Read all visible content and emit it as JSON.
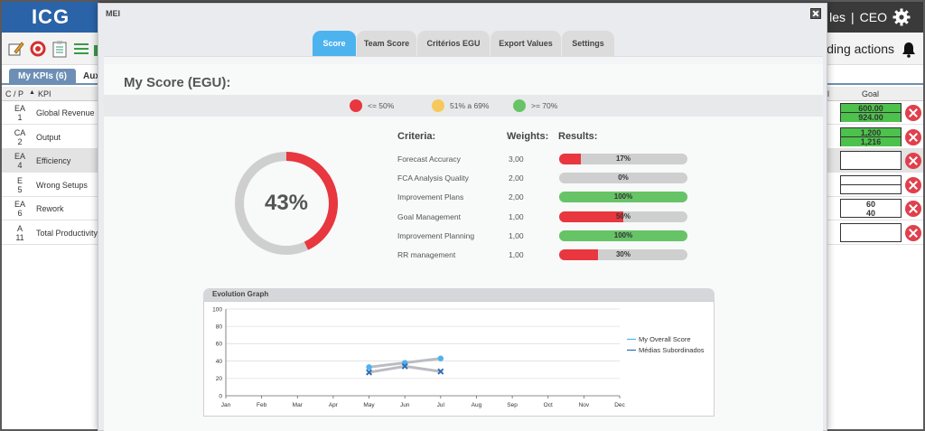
{
  "app": {
    "logo": "ICG",
    "user_partial": "les",
    "separator": "|",
    "role": "CEO",
    "pending_partial": "ending actions",
    "subtabs": {
      "active": "My KPIs (6)",
      "other": "Auxili"
    },
    "grid_headers": {
      "cp": "C / P",
      "kpi": "KPI",
      "goal_partial": "l",
      "goal": "Goal"
    },
    "rows": [
      {
        "cp1": "EA",
        "cp2": "1",
        "kpi": "Global Revenue"
      },
      {
        "cp1": "CA",
        "cp2": "2",
        "kpi": "Output"
      },
      {
        "cp1": "EA",
        "cp2": "4",
        "kpi": "Efficiency"
      },
      {
        "cp1": "E",
        "cp2": "5",
        "kpi": "Wrong Setups"
      },
      {
        "cp1": "EA",
        "cp2": "6",
        "kpi": "Rework"
      },
      {
        "cp1": "A",
        "cp2": "11",
        "kpi": "Total Productivity"
      }
    ],
    "goals": [
      {
        "v1": "600.00",
        "v2": "924.00"
      },
      {
        "v1": "1,200",
        "v2": "1,216"
      },
      {
        "v1": "",
        "v2": ""
      },
      {
        "v1": "",
        "v2": ""
      },
      {
        "v1": "60",
        "v2": "40"
      },
      {
        "v1": "",
        "v2": ""
      }
    ]
  },
  "modal": {
    "title": "MEI",
    "tabs": [
      "Score",
      "Team Score",
      "Critérios EGU",
      "Export Values",
      "Settings"
    ],
    "active_tab": "Score",
    "score_title": "My Score (EGU):",
    "legend": [
      {
        "label": "<= 50%",
        "color": "#e8373f"
      },
      {
        "label": "51% a 69%",
        "color": "#f7c95c"
      },
      {
        "label": ">= 70%",
        "color": "#66c466"
      }
    ],
    "overall_score": {
      "value": 43,
      "label": "43%"
    },
    "criteria_headers": {
      "criteria": "Criteria:",
      "weights": "Weights:",
      "results": "Results:"
    },
    "criteria": [
      {
        "name": "Forecast Accuracy",
        "weight": "3,00",
        "result": 17,
        "label": "17%",
        "color": "#e8373f"
      },
      {
        "name": "FCA Analysis Quality",
        "weight": "2,00",
        "result": 0,
        "label": "0%",
        "color": "#e8373f"
      },
      {
        "name": "Improvement Plans",
        "weight": "2,00",
        "result": 100,
        "label": "100%",
        "color": "#66c466"
      },
      {
        "name": "Goal Management",
        "weight": "1,00",
        "result": 50,
        "label": "50%",
        "color": "#e8373f"
      },
      {
        "name": "Improvement Planning",
        "weight": "1,00",
        "result": 100,
        "label": "100%",
        "color": "#66c466"
      },
      {
        "name": "RR management",
        "weight": "1,00",
        "result": 30,
        "label": "30%",
        "color": "#e8373f"
      }
    ],
    "evolution_title": "Evolution Graph"
  },
  "chart_data": {
    "type": "line",
    "title": "Evolution Graph",
    "categories": [
      "Jan",
      "Feb",
      "Mar",
      "Apr",
      "May",
      "Jun",
      "Jul",
      "Aug",
      "Sep",
      "Oct",
      "Nov",
      "Dec"
    ],
    "ylim": [
      0,
      100
    ],
    "yticks": [
      0,
      20,
      40,
      60,
      80,
      100
    ],
    "grid": true,
    "legend_position": "right",
    "series": [
      {
        "name": "My Overall Score",
        "color": "#4db3ef",
        "marker": "circle",
        "values": [
          null,
          null,
          null,
          null,
          33,
          38,
          43,
          null,
          null,
          null,
          null,
          null
        ]
      },
      {
        "name": "Médias Subordinados",
        "color": "#2f6db5",
        "marker": "x",
        "values": [
          null,
          null,
          null,
          null,
          27,
          34,
          28,
          null,
          null,
          null,
          null,
          null
        ]
      }
    ]
  }
}
